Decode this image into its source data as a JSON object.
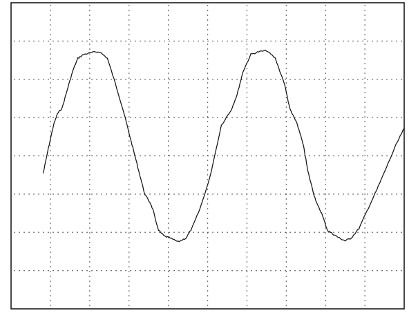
{
  "chart_data": {
    "type": "line",
    "title": "",
    "xlabel": "",
    "ylabel": "",
    "grid": true,
    "grid_style": "dotted",
    "x_divisions": 10,
    "y_divisions": 8,
    "xlim": [
      0,
      10
    ],
    "ylim": [
      0,
      8
    ],
    "colors": {
      "trace": "#141414",
      "grid": "#2a2a2a",
      "frame": "#1a1a1a",
      "background": "#ffffff"
    },
    "series": [
      {
        "x": [
          0.82,
          0.95,
          1.08,
          1.18,
          1.3,
          1.45,
          1.58,
          1.7,
          1.85,
          2.05,
          2.25,
          2.45,
          2.65,
          2.85,
          2.95,
          3.1,
          3.25,
          3.4,
          3.55,
          3.62,
          3.75,
          3.9,
          4.05,
          4.25,
          4.45,
          4.6,
          4.8,
          5.05,
          5.35,
          5.6,
          5.75,
          5.9,
          6.1,
          6.3,
          6.5,
          6.72,
          6.95,
          7.1,
          7.25,
          7.35,
          7.45,
          7.55,
          7.7,
          7.8,
          7.9,
          8.05,
          8.2,
          8.35,
          8.5,
          8.65,
          8.85,
          9.05,
          9.3,
          9.55,
          9.8,
          10.0
        ],
        "y": [
          3.55,
          4.2,
          4.8,
          5.1,
          5.25,
          5.8,
          6.25,
          6.55,
          6.65,
          6.7,
          6.72,
          6.55,
          5.9,
          5.2,
          4.8,
          4.2,
          3.6,
          3.0,
          2.75,
          2.55,
          2.05,
          1.9,
          1.85,
          1.75,
          1.85,
          2.1,
          2.6,
          3.4,
          4.8,
          5.2,
          5.6,
          6.2,
          6.65,
          6.72,
          6.75,
          6.55,
          5.9,
          5.2,
          4.9,
          4.6,
          4.2,
          3.6,
          3.0,
          2.7,
          2.5,
          2.05,
          1.95,
          1.85,
          1.78,
          1.85,
          2.1,
          2.55,
          3.1,
          3.7,
          4.3,
          4.72
        ]
      }
    ]
  }
}
